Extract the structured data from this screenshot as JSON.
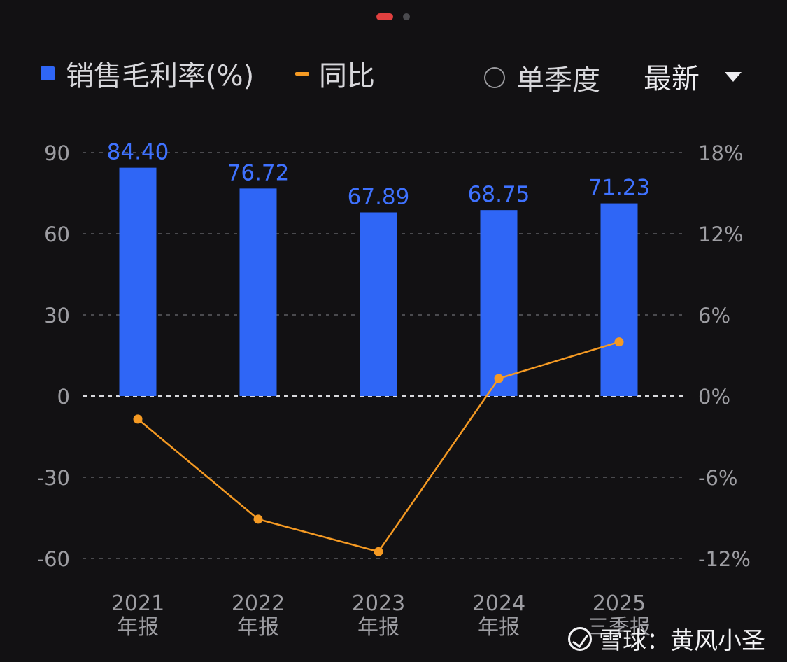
{
  "legend": {
    "bar_label": "销售毛利率(%)",
    "line_label": "同比",
    "toggle_label": "单季度",
    "period_select": "最新"
  },
  "watermark": "雪球：黄风小圣",
  "colors": {
    "bar": "#2f66f6",
    "line": "#f59a23",
    "bar_label": "#3f72ff",
    "grid": "#4a4a4e",
    "axis_text": "#9d9da2"
  },
  "chart_data": {
    "type": "bar",
    "categories": [
      [
        "2021",
        "年报"
      ],
      [
        "2022",
        "年报"
      ],
      [
        "2023",
        "年报"
      ],
      [
        "2024",
        "年报"
      ],
      [
        "2025",
        "三季报"
      ]
    ],
    "series": [
      {
        "name": "销售毛利率(%)",
        "type": "bar",
        "axis": "left",
        "values": [
          84.4,
          76.72,
          67.89,
          68.75,
          71.23
        ],
        "labels": [
          "84.40",
          "76.72",
          "67.89",
          "68.75",
          "71.23"
        ]
      },
      {
        "name": "同比",
        "type": "line",
        "axis": "right",
        "values": [
          -1.7,
          -9.1,
          -11.5,
          1.3,
          4.0
        ]
      }
    ],
    "y_left": {
      "ticks": [
        90,
        60,
        30,
        0,
        -30,
        -60
      ],
      "range": [
        -60,
        90
      ]
    },
    "y_right": {
      "ticks": [
        "18%",
        "12%",
        "6%",
        "0%",
        "-6%",
        "-12%"
      ],
      "range": [
        -12,
        18
      ]
    },
    "grid": true
  }
}
